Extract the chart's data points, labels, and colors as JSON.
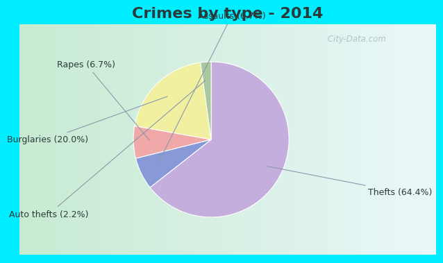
{
  "title": "Crimes by type - 2014",
  "slices": [
    {
      "label": "Thefts (64.4%)",
      "value": 64.4,
      "color": "#c4aede"
    },
    {
      "label": "Assaults (6.7%)",
      "value": 6.7,
      "color": "#8899d8"
    },
    {
      "label": "Rapes (6.7%)",
      "value": 6.7,
      "color": "#f0a8a8"
    },
    {
      "label": "Burglaries (20.0%)",
      "value": 20.0,
      "color": "#f0f0a0"
    },
    {
      "label": "Auto thefts (2.2%)",
      "value": 2.2,
      "color": "#a8c8a0"
    }
  ],
  "bg_outer": "#00eeff",
  "bg_inner_left": "#c8e8d0",
  "bg_inner_right": "#eaf4f8",
  "title_fontsize": 16,
  "label_fontsize": 9,
  "watermark": " City-Data.com",
  "startangle": 90,
  "title_color": "#2a3a3a"
}
